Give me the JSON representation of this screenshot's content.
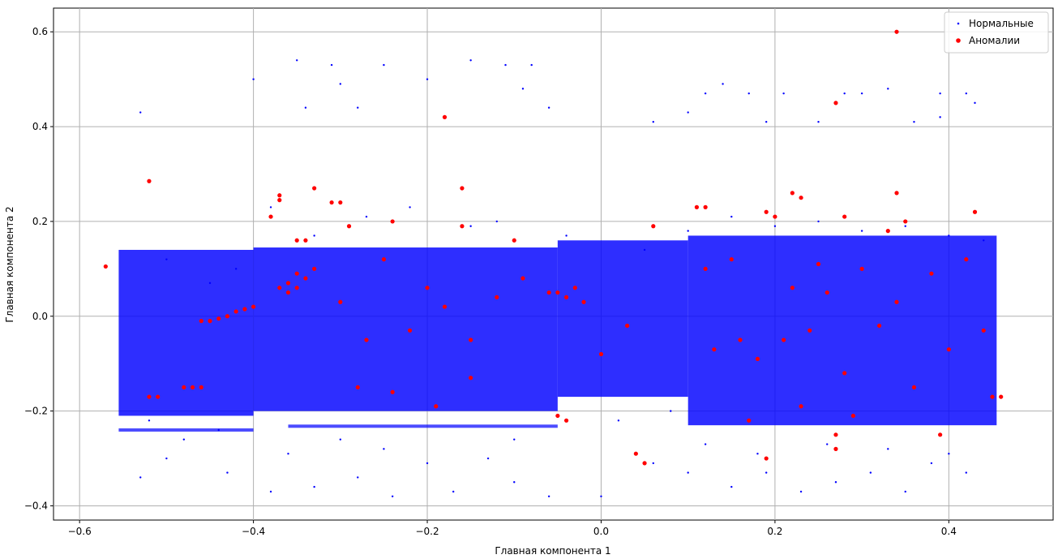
{
  "chart_data": {
    "type": "scatter",
    "title": "",
    "xlabel": "Главная компонента 1",
    "ylabel": "Главная компонента 2",
    "xlim": [
      -0.63,
      0.52
    ],
    "ylim": [
      -0.43,
      0.65
    ],
    "x_ticks": [
      -0.6,
      -0.4,
      -0.2,
      0.0,
      0.2,
      0.4
    ],
    "x_tick_labels": [
      "−0.6",
      "−0.4",
      "−0.2",
      "0.0",
      "0.2",
      "0.4"
    ],
    "y_ticks": [
      -0.4,
      -0.2,
      0.0,
      0.2,
      0.4,
      0.6
    ],
    "y_tick_labels": [
      "−0.4",
      "−0.2",
      "0.0",
      "0.2",
      "0.4",
      "0.6"
    ],
    "grid": true,
    "legend_position": "top-right",
    "series": [
      {
        "name": "Нормальные",
        "color": "#0000ff",
        "marker": "small-dot",
        "points": [
          [
            -0.53,
            0.43
          ],
          [
            -0.4,
            0.5
          ],
          [
            -0.35,
            0.54
          ],
          [
            -0.34,
            0.44
          ],
          [
            -0.31,
            0.53
          ],
          [
            -0.3,
            0.49
          ],
          [
            -0.28,
            0.44
          ],
          [
            -0.25,
            0.53
          ],
          [
            -0.2,
            0.5
          ],
          [
            -0.15,
            0.54
          ],
          [
            -0.11,
            0.53
          ],
          [
            -0.09,
            0.48
          ],
          [
            -0.08,
            0.53
          ],
          [
            -0.06,
            0.44
          ],
          [
            0.06,
            0.41
          ],
          [
            0.1,
            0.43
          ],
          [
            0.12,
            0.47
          ],
          [
            0.14,
            0.49
          ],
          [
            0.17,
            0.47
          ],
          [
            0.19,
            0.41
          ],
          [
            0.21,
            0.47
          ],
          [
            0.25,
            0.41
          ],
          [
            0.28,
            0.47
          ],
          [
            0.3,
            0.47
          ],
          [
            0.33,
            0.48
          ],
          [
            0.36,
            0.41
          ],
          [
            0.39,
            0.47
          ],
          [
            0.42,
            0.47
          ],
          [
            0.43,
            0.45
          ],
          [
            0.39,
            0.42
          ],
          [
            -0.53,
            -0.34
          ],
          [
            -0.5,
            -0.3
          ],
          [
            -0.43,
            -0.33
          ],
          [
            -0.38,
            -0.37
          ],
          [
            -0.36,
            -0.29
          ],
          [
            -0.33,
            -0.36
          ],
          [
            -0.28,
            -0.34
          ],
          [
            -0.24,
            -0.38
          ],
          [
            -0.2,
            -0.31
          ],
          [
            -0.17,
            -0.37
          ],
          [
            -0.13,
            -0.3
          ],
          [
            -0.1,
            -0.35
          ],
          [
            -0.06,
            -0.38
          ],
          [
            0.0,
            -0.38
          ],
          [
            0.06,
            -0.31
          ],
          [
            0.1,
            -0.33
          ],
          [
            0.15,
            -0.36
          ],
          [
            0.19,
            -0.33
          ],
          [
            0.23,
            -0.37
          ],
          [
            0.27,
            -0.35
          ],
          [
            0.31,
            -0.33
          ],
          [
            0.35,
            -0.37
          ],
          [
            0.38,
            -0.31
          ],
          [
            0.42,
            -0.33
          ],
          [
            -0.5,
            0.12
          ],
          [
            -0.45,
            0.07
          ],
          [
            -0.42,
            0.1
          ],
          [
            -0.38,
            0.23
          ],
          [
            -0.33,
            0.17
          ],
          [
            -0.27,
            0.21
          ],
          [
            -0.22,
            0.23
          ],
          [
            -0.15,
            0.19
          ],
          [
            -0.12,
            0.2
          ],
          [
            -0.04,
            0.17
          ],
          [
            0.05,
            0.14
          ],
          [
            0.1,
            0.18
          ],
          [
            0.15,
            0.21
          ],
          [
            0.2,
            0.19
          ],
          [
            0.25,
            0.2
          ],
          [
            0.3,
            0.18
          ],
          [
            0.35,
            0.19
          ],
          [
            0.4,
            0.17
          ],
          [
            0.44,
            0.16
          ],
          [
            -0.52,
            -0.22
          ],
          [
            -0.48,
            -0.26
          ],
          [
            -0.44,
            -0.24
          ],
          [
            -0.3,
            -0.26
          ],
          [
            -0.25,
            -0.28
          ],
          [
            -0.1,
            -0.26
          ],
          [
            0.02,
            -0.22
          ],
          [
            0.08,
            -0.2
          ],
          [
            0.12,
            -0.27
          ],
          [
            0.18,
            -0.29
          ],
          [
            0.26,
            -0.27
          ],
          [
            0.33,
            -0.28
          ],
          [
            0.4,
            -0.29
          ]
        ]
      },
      {
        "name": "Аномалии",
        "color": "#ff0000",
        "marker": "dot",
        "points": [
          [
            -0.57,
            0.105
          ],
          [
            -0.52,
            0.285
          ],
          [
            -0.37,
            0.255
          ],
          [
            -0.37,
            0.245
          ],
          [
            -0.38,
            0.21
          ],
          [
            -0.33,
            0.27
          ],
          [
            -0.3,
            0.24
          ],
          [
            -0.31,
            0.24
          ],
          [
            -0.29,
            0.19
          ],
          [
            -0.18,
            0.42
          ],
          [
            -0.16,
            0.27
          ],
          [
            -0.16,
            0.19
          ],
          [
            -0.1,
            0.16
          ],
          [
            -0.24,
            0.2
          ],
          [
            0.06,
            0.19
          ],
          [
            0.12,
            0.23
          ],
          [
            0.11,
            0.23
          ],
          [
            0.19,
            0.22
          ],
          [
            0.2,
            0.21
          ],
          [
            0.22,
            0.26
          ],
          [
            0.23,
            0.25
          ],
          [
            0.28,
            0.21
          ],
          [
            0.27,
            0.45
          ],
          [
            0.34,
            0.6
          ],
          [
            0.34,
            0.26
          ],
          [
            0.35,
            0.2
          ],
          [
            0.43,
            0.22
          ],
          [
            0.33,
            0.18
          ],
          [
            -0.35,
            0.16
          ],
          [
            -0.34,
            0.16
          ],
          [
            0.04,
            -0.29
          ],
          [
            0.05,
            -0.31
          ],
          [
            0.19,
            -0.3
          ],
          [
            0.27,
            -0.25
          ],
          [
            0.27,
            -0.28
          ],
          [
            0.39,
            -0.25
          ],
          [
            0.45,
            -0.17
          ],
          [
            0.46,
            -0.17
          ],
          [
            -0.05,
            -0.21
          ],
          [
            -0.04,
            -0.22
          ],
          [
            -0.48,
            -0.15
          ],
          [
            -0.47,
            -0.15
          ],
          [
            -0.46,
            -0.15
          ],
          [
            -0.52,
            -0.17
          ],
          [
            -0.51,
            -0.17
          ],
          [
            -0.46,
            -0.01
          ],
          [
            -0.44,
            -0.005
          ],
          [
            -0.42,
            0.01
          ],
          [
            -0.41,
            0.015
          ],
          [
            -0.4,
            0.02
          ],
          [
            -0.43,
            0.0
          ],
          [
            -0.45,
            -0.01
          ],
          [
            -0.36,
            0.07
          ],
          [
            -0.35,
            0.09
          ],
          [
            -0.34,
            0.08
          ],
          [
            -0.36,
            0.05
          ],
          [
            -0.33,
            0.1
          ],
          [
            -0.37,
            0.06
          ],
          [
            -0.35,
            0.06
          ],
          [
            -0.3,
            0.03
          ],
          [
            -0.27,
            -0.05
          ],
          [
            -0.25,
            0.12
          ],
          [
            -0.22,
            -0.03
          ],
          [
            -0.2,
            0.06
          ],
          [
            -0.18,
            0.02
          ],
          [
            -0.15,
            -0.05
          ],
          [
            -0.12,
            0.04
          ],
          [
            -0.09,
            0.08
          ],
          [
            -0.06,
            0.05
          ],
          [
            -0.05,
            0.05
          ],
          [
            -0.03,
            0.06
          ],
          [
            -0.04,
            0.04
          ],
          [
            -0.02,
            0.03
          ],
          [
            0.0,
            -0.08
          ],
          [
            0.03,
            -0.02
          ],
          [
            0.12,
            0.1
          ],
          [
            0.13,
            -0.07
          ],
          [
            0.15,
            0.12
          ],
          [
            0.16,
            -0.05
          ],
          [
            0.18,
            -0.09
          ],
          [
            0.22,
            0.06
          ],
          [
            0.24,
            -0.03
          ],
          [
            0.26,
            0.05
          ],
          [
            0.28,
            -0.12
          ],
          [
            0.3,
            0.1
          ],
          [
            0.32,
            -0.02
          ],
          [
            0.34,
            0.03
          ],
          [
            0.36,
            -0.15
          ],
          [
            0.38,
            0.09
          ],
          [
            0.4,
            -0.07
          ],
          [
            0.42,
            0.12
          ],
          [
            0.44,
            -0.03
          ],
          [
            0.25,
            0.11
          ],
          [
            0.21,
            -0.05
          ],
          [
            -0.28,
            -0.15
          ],
          [
            -0.24,
            -0.16
          ],
          [
            -0.19,
            -0.19
          ],
          [
            -0.15,
            -0.13
          ],
          [
            0.29,
            -0.21
          ],
          [
            0.23,
            -0.19
          ],
          [
            0.17,
            -0.22
          ]
        ]
      }
    ]
  }
}
